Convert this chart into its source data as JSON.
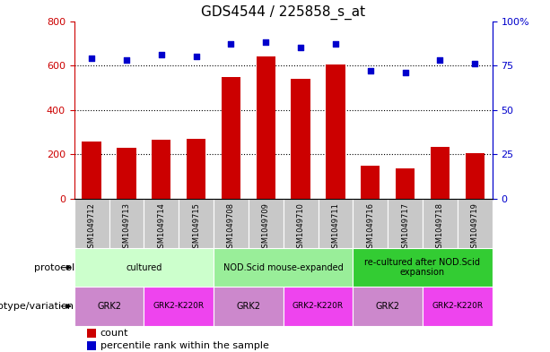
{
  "title": "GDS4544 / 225858_s_at",
  "samples": [
    "GSM1049712",
    "GSM1049713",
    "GSM1049714",
    "GSM1049715",
    "GSM1049708",
    "GSM1049709",
    "GSM1049710",
    "GSM1049711",
    "GSM1049716",
    "GSM1049717",
    "GSM1049718",
    "GSM1049719"
  ],
  "counts": [
    260,
    228,
    265,
    270,
    550,
    640,
    540,
    605,
    148,
    138,
    235,
    205
  ],
  "percentiles": [
    79,
    78,
    81,
    80,
    87,
    88,
    85,
    87,
    72,
    71,
    78,
    76
  ],
  "ylim_left": [
    0,
    800
  ],
  "ylim_right": [
    0,
    100
  ],
  "yticks_left": [
    0,
    200,
    400,
    600,
    800
  ],
  "yticks_right": [
    0,
    25,
    50,
    75,
    100
  ],
  "bar_color": "#cc0000",
  "dot_color": "#0000cc",
  "dotted_line_color": "#000000",
  "protocol_groups": [
    {
      "label": "cultured",
      "start": 0,
      "end": 4,
      "color": "#ccffcc"
    },
    {
      "label": "NOD.Scid mouse-expanded",
      "start": 4,
      "end": 8,
      "color": "#99ee99"
    },
    {
      "label": "re-cultured after NOD.Scid\nexpansion",
      "start": 8,
      "end": 12,
      "color": "#33cc33"
    }
  ],
  "genotype_groups": [
    {
      "label": "GRK2",
      "start": 0,
      "end": 2,
      "color": "#cc88cc"
    },
    {
      "label": "GRK2-K220R",
      "start": 2,
      "end": 4,
      "color": "#ee44ee"
    },
    {
      "label": "GRK2",
      "start": 4,
      "end": 6,
      "color": "#cc88cc"
    },
    {
      "label": "GRK2-K220R",
      "start": 6,
      "end": 8,
      "color": "#ee44ee"
    },
    {
      "label": "GRK2",
      "start": 8,
      "end": 10,
      "color": "#cc88cc"
    },
    {
      "label": "GRK2-K220R",
      "start": 10,
      "end": 12,
      "color": "#ee44ee"
    }
  ],
  "protocol_label": "protocol",
  "genotype_label": "genotype/variation",
  "legend_count": "count",
  "legend_percentile": "percentile rank within the sample",
  "tick_bg_color": "#c8c8c8",
  "right_axis_color": "#0000cc",
  "left_axis_color": "#cc0000",
  "title_fontsize": 11,
  "sample_fontsize": 6,
  "row_label_fontsize": 8,
  "cell_fontsize": 7,
  "legend_fontsize": 8
}
